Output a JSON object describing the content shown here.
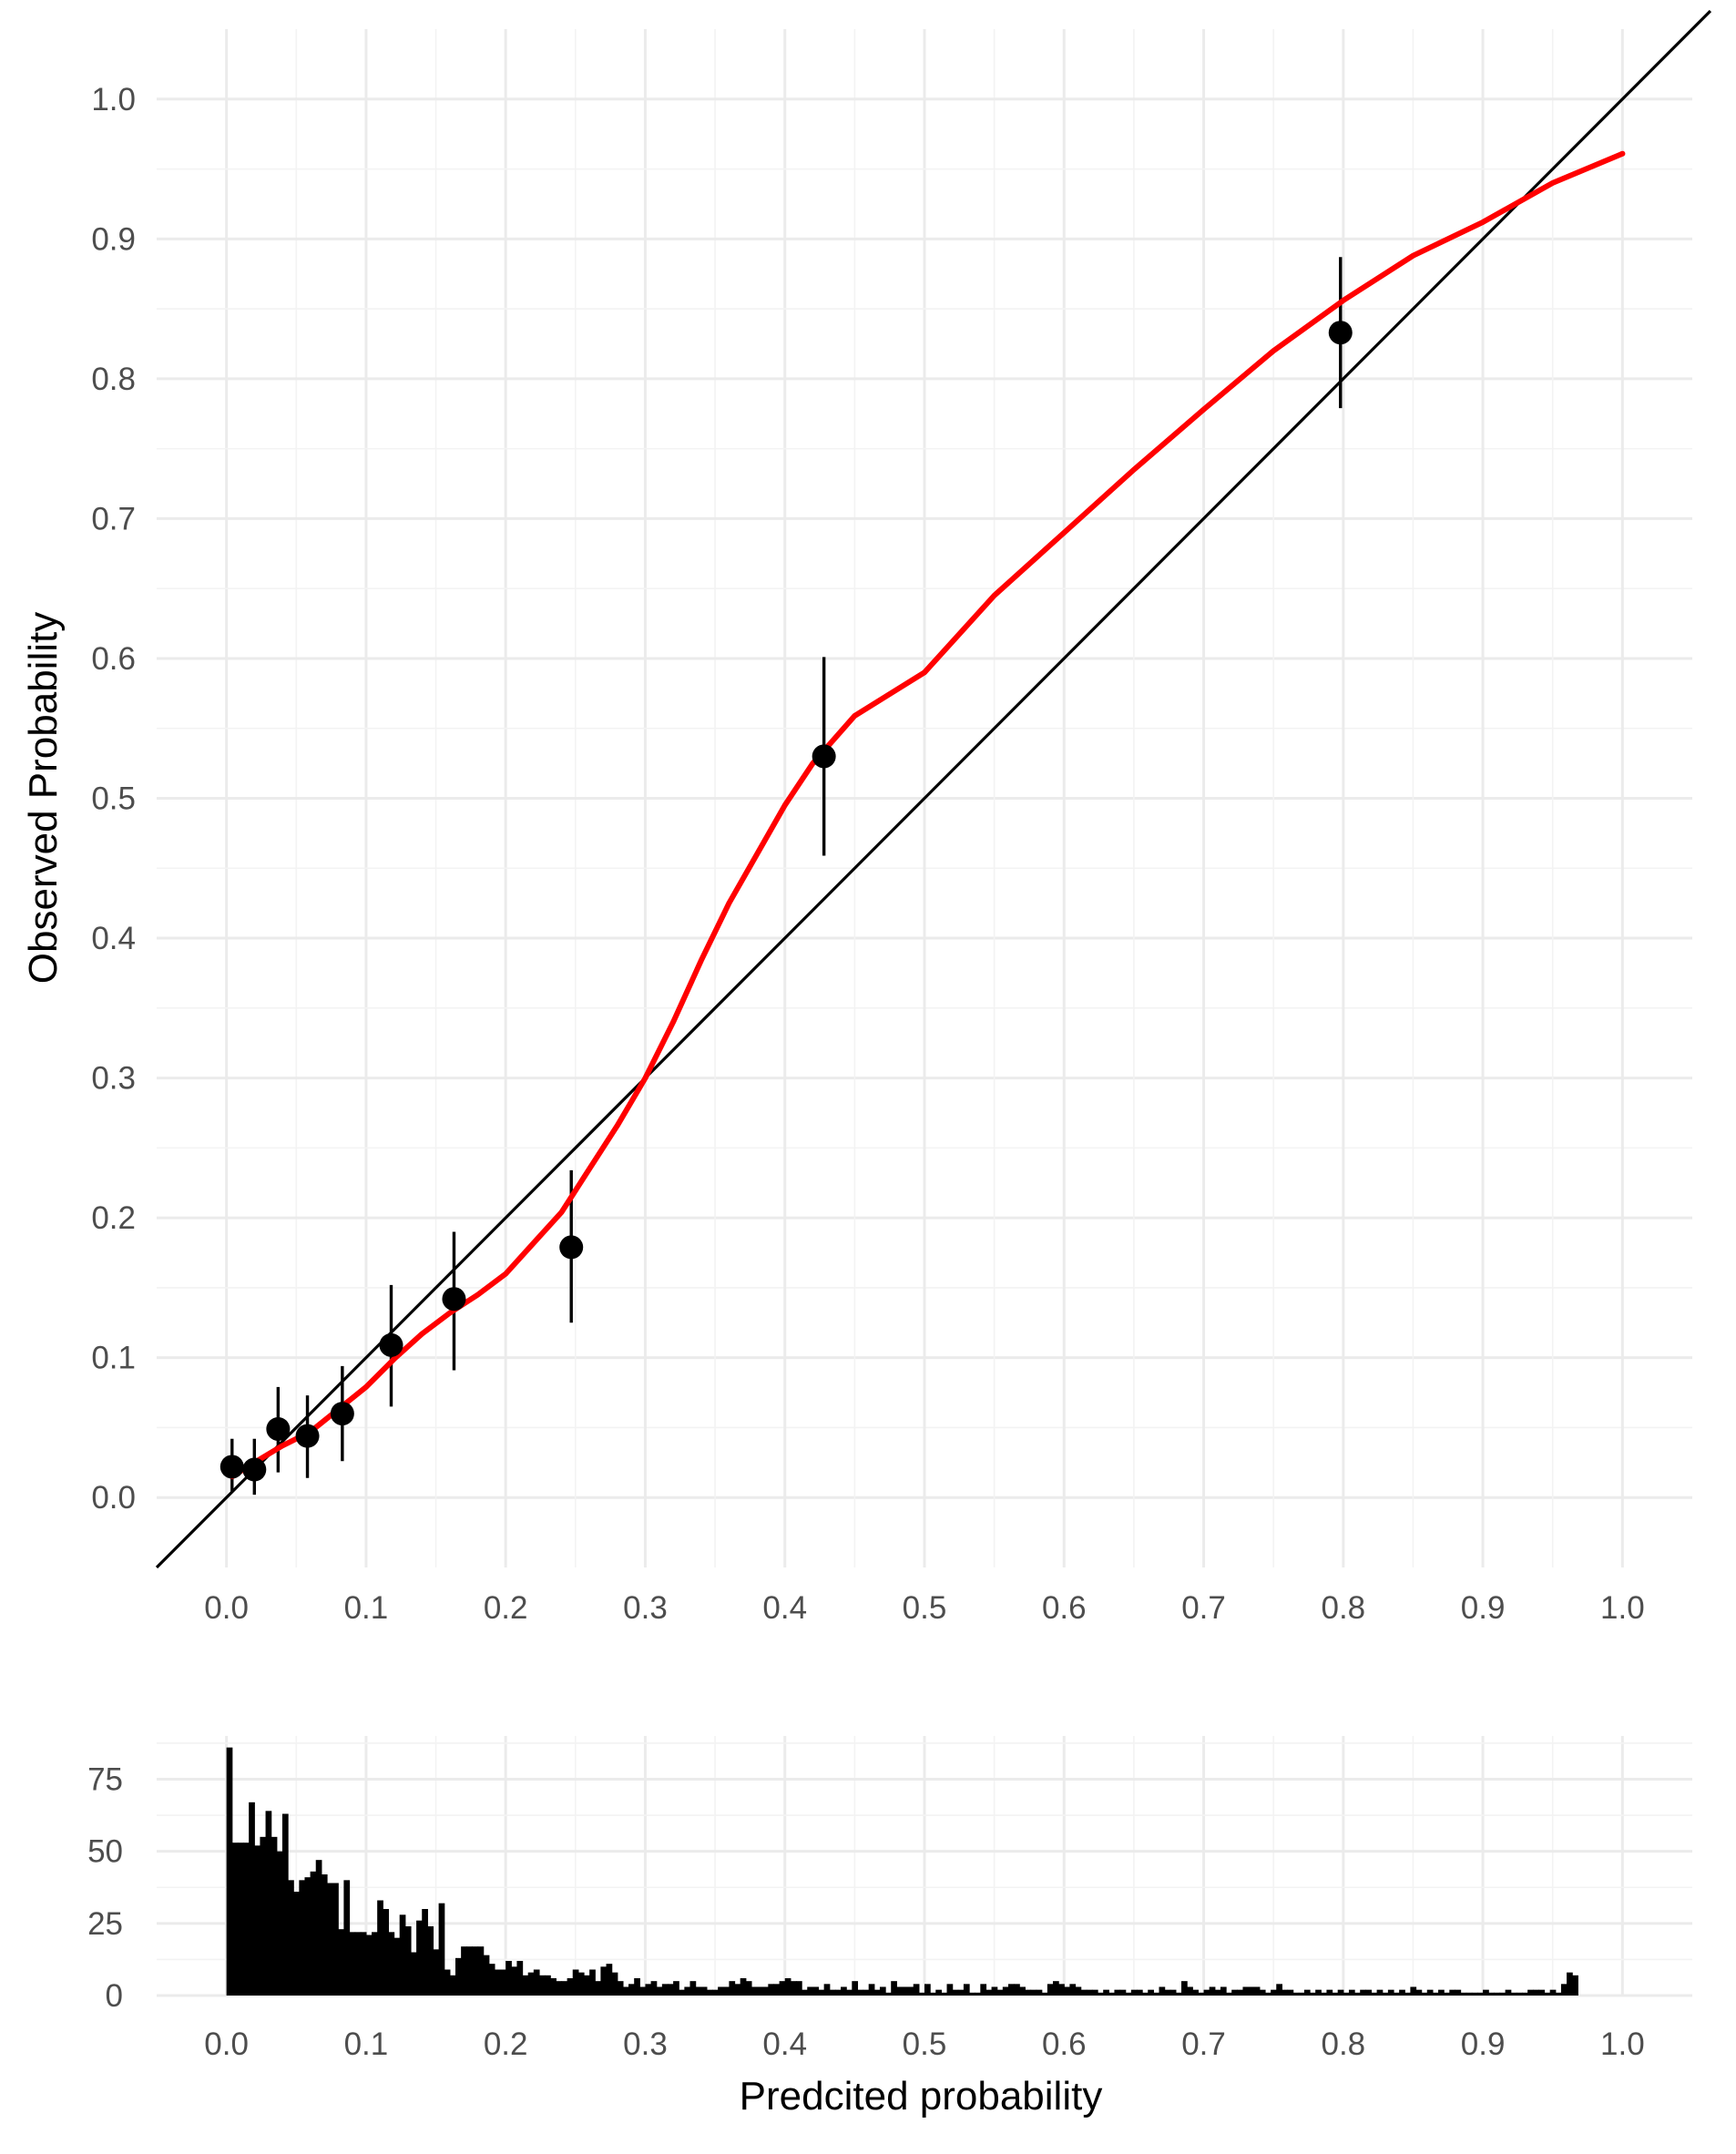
{
  "chart_data": [
    {
      "type": "scatter",
      "ylabel": "Observed Probability",
      "xlim": [
        -0.05,
        1.05
      ],
      "ylim": [
        -0.05,
        1.05
      ],
      "x_ticks": [
        "0.0",
        "0.1",
        "0.2",
        "0.3",
        "0.4",
        "0.5",
        "0.6",
        "0.7",
        "0.8",
        "0.9",
        "1.0"
      ],
      "y_ticks": [
        "0.0",
        "0.1",
        "0.2",
        "0.3",
        "0.4",
        "0.5",
        "0.6",
        "0.7",
        "0.8",
        "0.9",
        "1.0"
      ],
      "grid": true,
      "colors": {
        "points": "#000000",
        "smooth": "#ff0000",
        "reference": "#000000",
        "grid": "#ebebeb"
      },
      "reference_line": {
        "slope": 1,
        "intercept": 0
      },
      "points": [
        {
          "x": 0.004,
          "y": 0.022,
          "lower": 0.004,
          "upper": 0.042
        },
        {
          "x": 0.02,
          "y": 0.02,
          "lower": 0.002,
          "upper": 0.042
        },
        {
          "x": 0.037,
          "y": 0.049,
          "lower": 0.018,
          "upper": 0.079
        },
        {
          "x": 0.058,
          "y": 0.044,
          "lower": 0.014,
          "upper": 0.073
        },
        {
          "x": 0.083,
          "y": 0.06,
          "lower": 0.026,
          "upper": 0.094
        },
        {
          "x": 0.118,
          "y": 0.109,
          "lower": 0.065,
          "upper": 0.152
        },
        {
          "x": 0.163,
          "y": 0.142,
          "lower": 0.091,
          "upper": 0.19
        },
        {
          "x": 0.247,
          "y": 0.179,
          "lower": 0.125,
          "upper": 0.234
        },
        {
          "x": 0.428,
          "y": 0.53,
          "lower": 0.459,
          "upper": 0.601
        },
        {
          "x": 0.798,
          "y": 0.833,
          "lower": 0.779,
          "upper": 0.887
        }
      ],
      "smooth": {
        "x": [
          0.004,
          0.02,
          0.04,
          0.06,
          0.08,
          0.1,
          0.12,
          0.14,
          0.16,
          0.18,
          0.2,
          0.22,
          0.24,
          0.26,
          0.28,
          0.3,
          0.32,
          0.34,
          0.36,
          0.38,
          0.4,
          0.42,
          0.45,
          0.5,
          0.55,
          0.6,
          0.65,
          0.7,
          0.75,
          0.8,
          0.85,
          0.9,
          0.95,
          1.0
        ],
        "y": [
          0.015,
          0.025,
          0.037,
          0.047,
          0.063,
          0.079,
          0.099,
          0.117,
          0.132,
          0.145,
          0.16,
          0.182,
          0.204,
          0.235,
          0.266,
          0.3,
          0.34,
          0.384,
          0.425,
          0.46,
          0.495,
          0.525,
          0.559,
          0.59,
          0.645,
          0.69,
          0.735,
          0.778,
          0.82,
          0.856,
          0.888,
          0.912,
          0.94,
          0.961
        ]
      }
    },
    {
      "type": "bar",
      "xlabel": "Predcited probability",
      "xlim": [
        -0.05,
        1.05
      ],
      "ylim": [
        0,
        90
      ],
      "x_ticks": [
        "0.0",
        "0.1",
        "0.2",
        "0.3",
        "0.4",
        "0.5",
        "0.6",
        "0.7",
        "0.8",
        "0.9",
        "1.0"
      ],
      "y_ticks": [
        "0",
        "25",
        "50",
        "75"
      ],
      "grid": true,
      "colors": {
        "bars": "#000000",
        "grid": "#ebebeb"
      },
      "bin_start": 0.0,
      "bin_width": 0.004,
      "counts": [
        86,
        53,
        53,
        53,
        67,
        52,
        55,
        64,
        55,
        50,
        63,
        40,
        36,
        40,
        41,
        43,
        47,
        42,
        39,
        39,
        23,
        40,
        22,
        22,
        22,
        21,
        22,
        33,
        30,
        22,
        20,
        28,
        24,
        15,
        26,
        30,
        24,
        16,
        32,
        9,
        7,
        13,
        17,
        17,
        17,
        17,
        14,
        11,
        9,
        9,
        12,
        10,
        12,
        7,
        8,
        9,
        7,
        7,
        6,
        5,
        5,
        6,
        9,
        8,
        7,
        9,
        5,
        10,
        11,
        8,
        5,
        3,
        4,
        6,
        3,
        4,
        5,
        3,
        4,
        4,
        5,
        2,
        3,
        5,
        3,
        3,
        2,
        2,
        3,
        3,
        5,
        4,
        6,
        5,
        3,
        3,
        3,
        4,
        4,
        5,
        6,
        5,
        5,
        2,
        3,
        3,
        2,
        4,
        2,
        2,
        3,
        2,
        5,
        2,
        2,
        4,
        2,
        3,
        1,
        5,
        3,
        3,
        3,
        4,
        1,
        4,
        1,
        2,
        1,
        4,
        2,
        2,
        4,
        1,
        1,
        4,
        2,
        3,
        2,
        3,
        4,
        4,
        3,
        2,
        2,
        2,
        1,
        4,
        5,
        4,
        3,
        4,
        3,
        2,
        2,
        2,
        1,
        2,
        1,
        2,
        2,
        1,
        2,
        2,
        1,
        2,
        1,
        3,
        2,
        2,
        1,
        5,
        3,
        2,
        1,
        2,
        3,
        2,
        3,
        1,
        2,
        2,
        3,
        3,
        3,
        2,
        1,
        2,
        4,
        2,
        2,
        1,
        1,
        2,
        1,
        2,
        1,
        2,
        1,
        2,
        1,
        2,
        1,
        2,
        2,
        1,
        2,
        1,
        2,
        1,
        2,
        1,
        3,
        2,
        1,
        2,
        1,
        2,
        1,
        2,
        2,
        1,
        1,
        1,
        1,
        2,
        1,
        1,
        1,
        2,
        1,
        1,
        1,
        2,
        2,
        2,
        1,
        2,
        1,
        4,
        8,
        7
      ],
      "counts_note": ""
    }
  ]
}
